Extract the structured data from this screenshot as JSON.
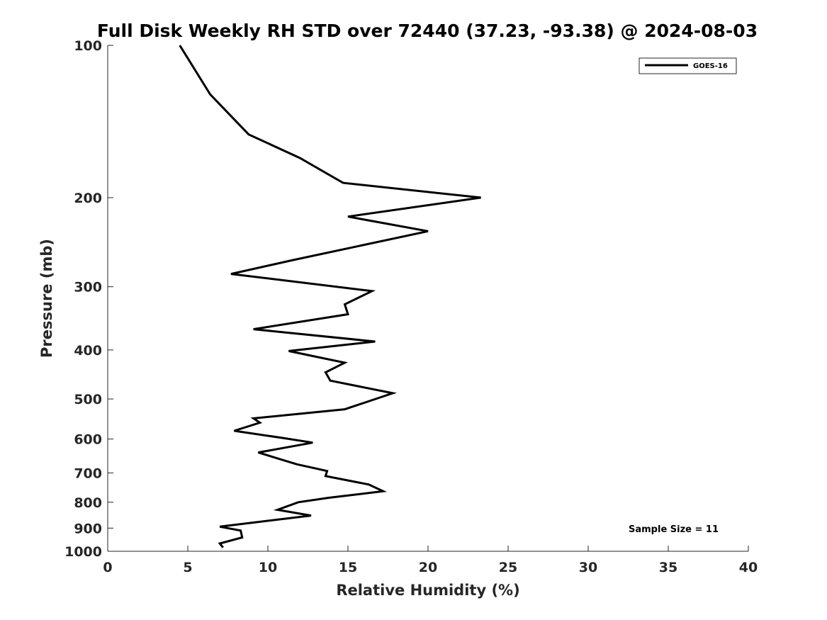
{
  "chart_data": {
    "type": "line",
    "title": "Full Disk Weekly RH STD over 72440 (37.23, -93.38) @ 2024-08-03",
    "xlabel": "Relative Humidity (%)",
    "ylabel": "Pressure (mb)",
    "xlim": [
      0,
      40
    ],
    "ylim": [
      1000,
      100
    ],
    "yscale": "log",
    "y_inverted": true,
    "grid": false,
    "legend_position": "top-right",
    "xticks": [
      0,
      5,
      10,
      15,
      20,
      25,
      30,
      35,
      40
    ],
    "yticks": [
      1000,
      900,
      800,
      700,
      600,
      500,
      400,
      300,
      200,
      100
    ],
    "annotation": "Sample Size = 11",
    "series": [
      {
        "name": "GOES-16",
        "color": "#000000",
        "points": [
          [
            4.5,
            100
          ],
          [
            6.4,
            125
          ],
          [
            8.8,
            150
          ],
          [
            12.0,
            167
          ],
          [
            14.7,
            187
          ],
          [
            23.3,
            200
          ],
          [
            15.0,
            218
          ],
          [
            20.0,
            233
          ],
          [
            11.5,
            266
          ],
          [
            7.7,
            283
          ],
          [
            16.5,
            306
          ],
          [
            14.8,
            325
          ],
          [
            15.0,
            340
          ],
          [
            9.1,
            364
          ],
          [
            16.7,
            385
          ],
          [
            11.3,
            402
          ],
          [
            14.8,
            424
          ],
          [
            13.6,
            443
          ],
          [
            13.9,
            460
          ],
          [
            17.8,
            487
          ],
          [
            14.8,
            524
          ],
          [
            9.1,
            546
          ],
          [
            9.5,
            557
          ],
          [
            7.9,
            578
          ],
          [
            10.9,
            597
          ],
          [
            12.8,
            610
          ],
          [
            9.4,
            638
          ],
          [
            11.8,
            673
          ],
          [
            13.7,
            694
          ],
          [
            13.6,
            710
          ],
          [
            16.3,
            738
          ],
          [
            17.2,
            761
          ],
          [
            13.8,
            784
          ],
          [
            11.9,
            800
          ],
          [
            10.6,
            828
          ],
          [
            12.7,
            850
          ],
          [
            7.0,
            894
          ],
          [
            8.3,
            910
          ],
          [
            8.4,
            939
          ],
          [
            7.0,
            965
          ],
          [
            7.2,
            983
          ]
        ]
      }
    ]
  }
}
